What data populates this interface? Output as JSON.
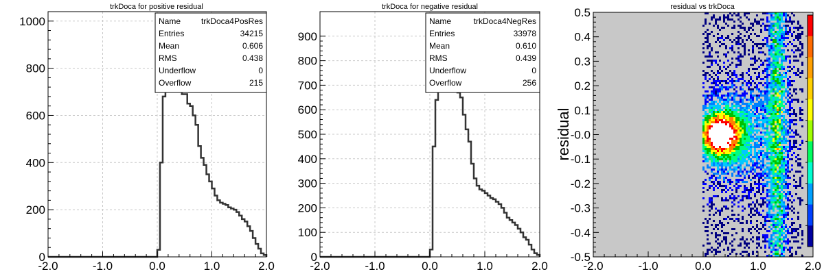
{
  "chart_data": [
    {
      "type": "histogram",
      "title": "trkDoca for positive residual",
      "xlim": [
        -2.0,
        2.0
      ],
      "ylim": [
        0,
        1040
      ],
      "x_ticks": [
        "-2.0",
        "-1.0",
        "0.0",
        "1.0",
        "2.0"
      ],
      "y_ticks": [
        0,
        200,
        400,
        600,
        800,
        1000
      ],
      "grid": true,
      "line_color": "#333333",
      "stats": {
        "name_label": "Name",
        "name": "trkDoca4PosRes",
        "rows": [
          {
            "label": "Entries",
            "value": "34215"
          },
          {
            "label": "Mean",
            "value": "0.606"
          },
          {
            "label": "RMS",
            "value": "0.438"
          },
          {
            "label": "Underflow",
            "value": "0"
          },
          {
            "label": "Overflow",
            "value": "215"
          }
        ]
      },
      "x": [
        0.0,
        0.05,
        0.1,
        0.15,
        0.2,
        0.25,
        0.3,
        0.35,
        0.4,
        0.45,
        0.5,
        0.55,
        0.6,
        0.65,
        0.7,
        0.75,
        0.8,
        0.85,
        0.9,
        0.95,
        1.0,
        1.05,
        1.1,
        1.15,
        1.2,
        1.25,
        1.3,
        1.35,
        1.4,
        1.45,
        1.5,
        1.55,
        1.6,
        1.65,
        1.7,
        1.75,
        1.8,
        1.85,
        1.9,
        1.95,
        2.0
      ],
      "values": [
        30,
        400,
        680,
        740,
        760,
        790,
        810,
        800,
        720,
        690,
        690,
        650,
        640,
        600,
        560,
        470,
        420,
        390,
        350,
        320,
        290,
        260,
        240,
        230,
        225,
        220,
        210,
        205,
        200,
        190,
        175,
        160,
        150,
        130,
        110,
        80,
        55,
        35,
        15,
        8,
        5
      ]
    },
    {
      "type": "histogram",
      "title": "trkDoca for negative residual",
      "xlim": [
        -2.0,
        2.0
      ],
      "ylim": [
        0,
        1000
      ],
      "x_ticks": [
        "-2.0",
        "-1.0",
        "0.0",
        "1.0",
        "2.0"
      ],
      "y_ticks": [
        0,
        100,
        200,
        300,
        400,
        500,
        600,
        700,
        800,
        900
      ],
      "grid": true,
      "line_color": "#333333",
      "stats": {
        "name_label": "Name",
        "name": "trkDoca4NegRes",
        "rows": [
          {
            "label": "Entries",
            "value": "33978"
          },
          {
            "label": "Mean",
            "value": "0.610"
          },
          {
            "label": "RMS",
            "value": "0.439"
          },
          {
            "label": "Underflow",
            "value": "0"
          },
          {
            "label": "Overflow",
            "value": "256"
          }
        ]
      },
      "x": [
        0.0,
        0.05,
        0.1,
        0.15,
        0.2,
        0.25,
        0.3,
        0.35,
        0.4,
        0.45,
        0.5,
        0.55,
        0.6,
        0.65,
        0.7,
        0.75,
        0.8,
        0.85,
        0.9,
        0.95,
        1.0,
        1.05,
        1.1,
        1.15,
        1.2,
        1.25,
        1.3,
        1.35,
        1.4,
        1.45,
        1.5,
        1.55,
        1.6,
        1.65,
        1.7,
        1.75,
        1.8,
        1.85,
        1.9,
        1.95,
        2.0
      ],
      "values": [
        30,
        450,
        640,
        680,
        710,
        760,
        780,
        800,
        700,
        680,
        670,
        650,
        580,
        520,
        470,
        380,
        320,
        290,
        275,
        270,
        260,
        250,
        240,
        235,
        225,
        215,
        200,
        180,
        160,
        150,
        140,
        130,
        115,
        100,
        80,
        70,
        50,
        30,
        15,
        8,
        5
      ]
    },
    {
      "type": "heatmap",
      "title": "residual vs trkDoca",
      "ylabel": "residual",
      "xlim": [
        -2.0,
        2.0
      ],
      "ylim": [
        -0.5,
        0.5
      ],
      "x_ticks": [
        "-2.0",
        "-1.0",
        "0.0",
        "1.0",
        "2.0"
      ],
      "y_ticks": [
        "-0.5",
        "-0.4",
        "-0.3",
        "-0.2",
        "-0.1",
        "-0.0",
        "0.1",
        "0.2",
        "0.3",
        "0.4",
        "0.5"
      ],
      "empty_color": "#c8c8c8",
      "palette": [
        "#000080",
        "#0000ff",
        "#0080ff",
        "#00c8ff",
        "#00ff80",
        "#00c000",
        "#ffff00",
        "#ff8000",
        "#ff0000",
        "#ffffff"
      ],
      "colorbar_colors": [
        "#ff0000",
        "#ff6a00",
        "#ffa000",
        "#ffd000",
        "#ffff00",
        "#a0ff00",
        "#00ff60",
        "#00ffd0",
        "#00a0ff",
        "#0040ff",
        "#0000a0"
      ]
    }
  ]
}
